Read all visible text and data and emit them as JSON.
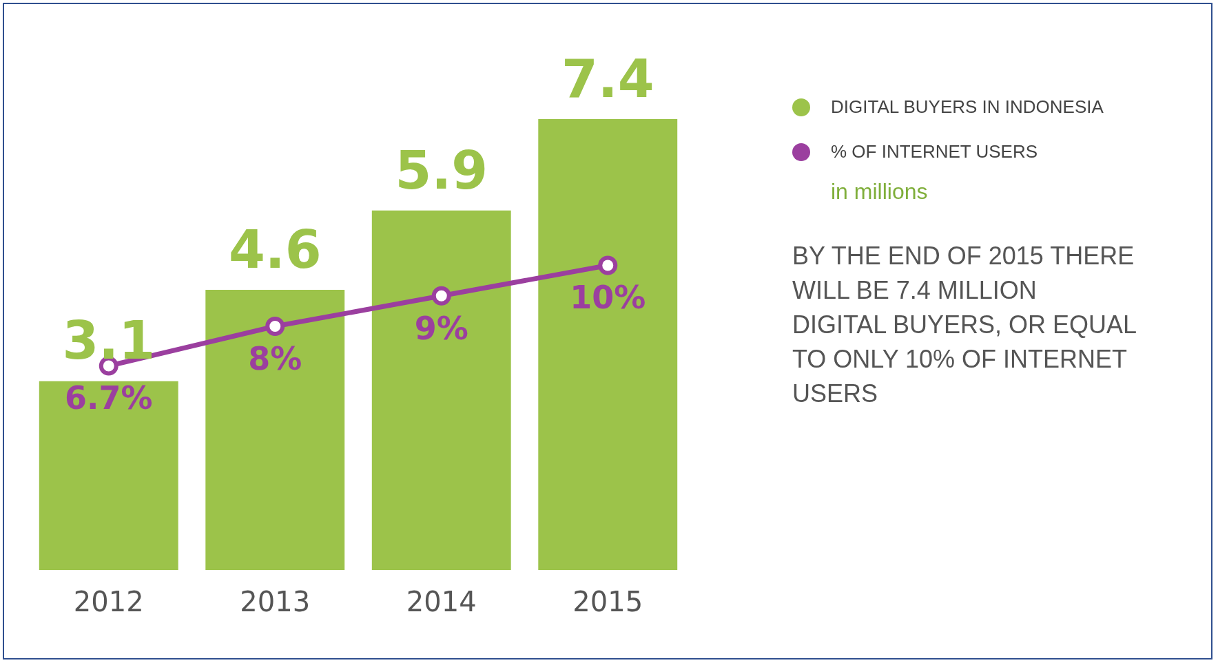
{
  "chart_data": {
    "type": "bar",
    "subtitle": "in millions",
    "categories": [
      "2012",
      "2013",
      "2014",
      "2015"
    ],
    "series": [
      {
        "name": "DIGITAL BUYERS IN INDONESIA",
        "color": "#9cc34a",
        "values": [
          3.1,
          4.6,
          5.9,
          7.4
        ],
        "value_labels": [
          "3.1",
          "4.6",
          "5.9",
          "7.4"
        ]
      },
      {
        "name": "% OF INTERNET USERS",
        "type": "line",
        "axis": "y2",
        "color": "#9b3f9f",
        "values": [
          6.7,
          8,
          9,
          10
        ],
        "value_labels": [
          "6.7%",
          "8%",
          "9%",
          "10%"
        ]
      }
    ],
    "tick_labels": "x",
    "grid": false,
    "legend": "right",
    "marker": "circle",
    "annotations": [
      "BY THE END OF 2015 THERE WILL BE 7.4 MILLION DIGITAL BUYERS, OR EQUAL TO ONLY 10% OF INTERNET USERS"
    ]
  }
}
